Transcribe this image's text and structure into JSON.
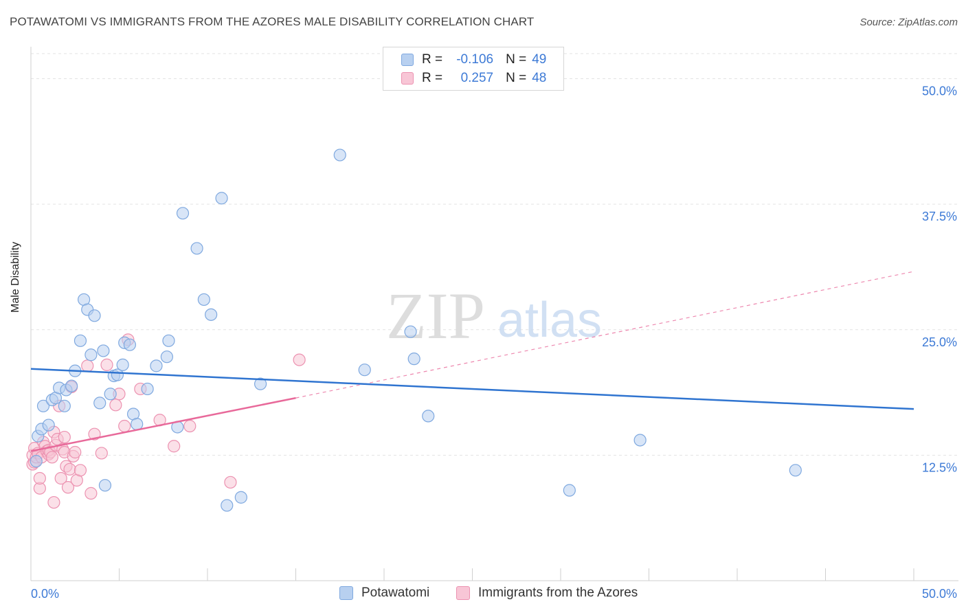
{
  "title": "POTAWATOMI VS IMMIGRANTS FROM THE AZORES MALE DISABILITY CORRELATION CHART",
  "source": "Source: ZipAtlas.com",
  "watermark": {
    "zip": "ZIP",
    "atlas": "atlas"
  },
  "legend": {
    "r_label": "R =",
    "n_label": "N =",
    "rows": [
      {
        "r": "-0.106",
        "n": "49"
      },
      {
        "r": "0.257",
        "n": "48"
      }
    ]
  },
  "bottom_legend": {
    "blue_label": "Potawatomi",
    "pink_label": "Immigrants from the Azores"
  },
  "colors": {
    "blue_fill": "#b8d0f0",
    "blue_stroke": "#7ea8df",
    "blue_line": "#2f74d0",
    "pink_fill": "#f8c6d6",
    "pink_stroke": "#ec91b0",
    "pink_line": "#e8699a",
    "axis_text": "#3d7ad6",
    "grid": "#e3e3e3"
  },
  "chart_data": {
    "type": "scatter",
    "title": "POTAWATOMI VS IMMIGRANTS FROM THE AZORES MALE DISABILITY CORRELATION CHART",
    "xlabel": "",
    "ylabel": "Male Disability",
    "xlim": [
      0,
      50
    ],
    "ylim": [
      0,
      52.5
    ],
    "x_tick_labels": [
      "0.0%",
      "50.0%"
    ],
    "y_ticks": [
      12.5,
      25.0,
      37.5,
      50.0
    ],
    "y_tick_labels": [
      "12.5%",
      "25.0%",
      "37.5%",
      "50.0%"
    ],
    "grid": true,
    "series": [
      {
        "name": "Potawatomi",
        "r": -0.106,
        "n": 49,
        "trend": {
          "x": [
            0,
            50
          ],
          "y": [
            21.1,
            17.1
          ],
          "style": "solid"
        },
        "points": [
          [
            0.3,
            11.9
          ],
          [
            0.4,
            14.4
          ],
          [
            0.6,
            15.1
          ],
          [
            0.7,
            17.4
          ],
          [
            1.0,
            15.5
          ],
          [
            1.2,
            18.0
          ],
          [
            1.4,
            18.2
          ],
          [
            1.6,
            19.2
          ],
          [
            1.9,
            17.4
          ],
          [
            2.0,
            19.0
          ],
          [
            2.3,
            19.4
          ],
          [
            2.5,
            20.9
          ],
          [
            2.8,
            23.9
          ],
          [
            3.0,
            28.0
          ],
          [
            3.2,
            27.0
          ],
          [
            3.4,
            22.5
          ],
          [
            3.6,
            26.4
          ],
          [
            3.9,
            17.7
          ],
          [
            4.1,
            22.9
          ],
          [
            4.2,
            9.5
          ],
          [
            4.5,
            18.6
          ],
          [
            4.7,
            20.4
          ],
          [
            4.9,
            20.5
          ],
          [
            5.2,
            21.5
          ],
          [
            5.3,
            23.7
          ],
          [
            5.6,
            23.5
          ],
          [
            5.8,
            16.6
          ],
          [
            6.0,
            15.6
          ],
          [
            6.6,
            19.1
          ],
          [
            7.1,
            21.4
          ],
          [
            7.7,
            22.3
          ],
          [
            7.8,
            23.9
          ],
          [
            8.3,
            15.3
          ],
          [
            8.6,
            36.6
          ],
          [
            9.4,
            33.1
          ],
          [
            9.8,
            28.0
          ],
          [
            10.2,
            26.5
          ],
          [
            10.8,
            38.1
          ],
          [
            11.1,
            7.5
          ],
          [
            11.9,
            8.3
          ],
          [
            13.0,
            19.6
          ],
          [
            17.5,
            42.4
          ],
          [
            18.9,
            21.0
          ],
          [
            21.5,
            24.8
          ],
          [
            21.7,
            22.1
          ],
          [
            22.5,
            16.4
          ],
          [
            30.5,
            9.0
          ],
          [
            34.5,
            14.0
          ],
          [
            43.3,
            11.0
          ]
        ]
      },
      {
        "name": "Immigrants from the Azores",
        "r": 0.257,
        "n": 48,
        "trend": {
          "x": [
            0,
            15
          ],
          "y": [
            12.9,
            18.2
          ],
          "style": "solid"
        },
        "trend_extension": {
          "x": [
            15,
            50
          ],
          "y": [
            18.2,
            30.8
          ],
          "style": "dashed"
        },
        "points": [
          [
            0.1,
            11.6
          ],
          [
            0.1,
            12.5
          ],
          [
            0.2,
            13.2
          ],
          [
            0.2,
            11.8
          ],
          [
            0.3,
            12.3
          ],
          [
            0.4,
            12.7
          ],
          [
            0.5,
            9.2
          ],
          [
            0.5,
            10.2
          ],
          [
            0.6,
            12.3
          ],
          [
            0.7,
            13.8
          ],
          [
            0.8,
            13.4
          ],
          [
            0.9,
            12.9
          ],
          [
            1.0,
            12.6
          ],
          [
            1.0,
            13.0
          ],
          [
            1.1,
            12.8
          ],
          [
            1.2,
            12.3
          ],
          [
            1.3,
            14.8
          ],
          [
            1.3,
            7.8
          ],
          [
            1.4,
            13.5
          ],
          [
            1.5,
            14.1
          ],
          [
            1.6,
            17.4
          ],
          [
            1.7,
            10.2
          ],
          [
            1.8,
            13.1
          ],
          [
            1.9,
            14.3
          ],
          [
            1.9,
            12.8
          ],
          [
            2.0,
            11.4
          ],
          [
            2.1,
            9.3
          ],
          [
            2.2,
            11.1
          ],
          [
            2.3,
            19.3
          ],
          [
            2.4,
            12.4
          ],
          [
            2.5,
            12.8
          ],
          [
            2.6,
            10.0
          ],
          [
            2.8,
            11.0
          ],
          [
            3.2,
            21.4
          ],
          [
            3.4,
            8.7
          ],
          [
            3.6,
            14.6
          ],
          [
            4.0,
            12.7
          ],
          [
            4.3,
            21.5
          ],
          [
            4.8,
            17.5
          ],
          [
            5.0,
            18.6
          ],
          [
            5.3,
            15.4
          ],
          [
            5.5,
            24.0
          ],
          [
            6.2,
            19.1
          ],
          [
            7.3,
            16.0
          ],
          [
            8.1,
            13.4
          ],
          [
            9.0,
            15.4
          ],
          [
            11.3,
            9.8
          ],
          [
            15.2,
            22.0
          ]
        ]
      }
    ]
  }
}
